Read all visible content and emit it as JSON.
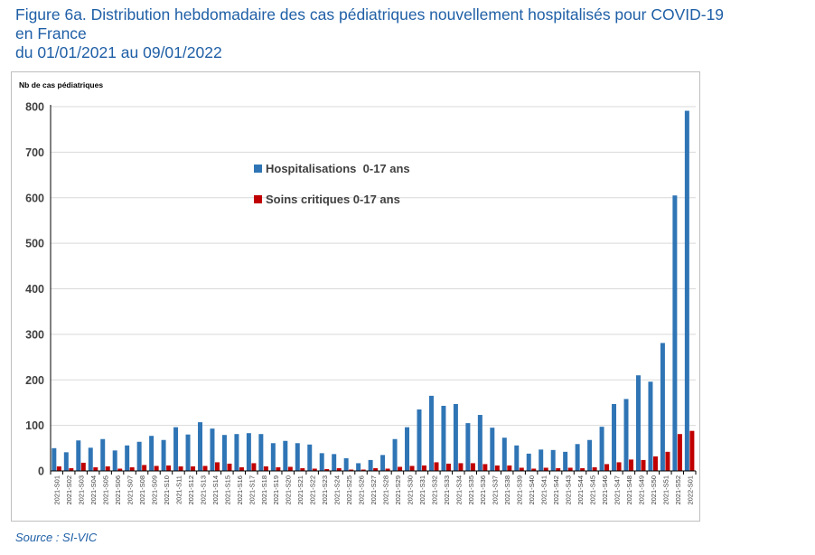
{
  "title": {
    "line1": "Figure 6a. Distribution hebdomadaire des cas pédiatriques nouvellement hospitalisés pour COVID-19",
    "line2": "en France",
    "line3": "du 01/01/2021 au 09/01/2022"
  },
  "source": "Source : SI-VIC",
  "colors": {
    "hosp": "#2f75b5",
    "crit": "#c00000",
    "grid": "#d9d9d9",
    "axis": "#000000"
  },
  "chart_data": {
    "type": "bar",
    "title": "",
    "xlabel": "",
    "ylabel": "Nb de cas pédiatriques",
    "ylim": [
      0,
      800
    ],
    "yticks": [
      0,
      100,
      200,
      300,
      400,
      500,
      600,
      700,
      800
    ],
    "grid": true,
    "legend": "top-center",
    "categories": [
      "2021-S01",
      "2021-S02",
      "2021-S03",
      "2021-S04",
      "2021-S05",
      "2021-S06",
      "2021-S07",
      "2021-S08",
      "2021-S09",
      "2021-S10",
      "2021-S11",
      "2021-S12",
      "2021-S13",
      "2021-S14",
      "2021-S15",
      "2021-S16",
      "2021-S17",
      "2021-S18",
      "2021-S19",
      "2021-S20",
      "2021-S21",
      "2021-S22",
      "2021-S23",
      "2021-S24",
      "2021-S25",
      "2021-S26",
      "2021-S27",
      "2021-S28",
      "2021-S29",
      "2021-S30",
      "2021-S31",
      "2021-S32",
      "2021-S33",
      "2021-S34",
      "2021-S35",
      "2021-S36",
      "2021-S37",
      "2021-S38",
      "2021-S39",
      "2021-S40",
      "2021-S41",
      "2021-S42",
      "2021-S43",
      "2021-S44",
      "2021-S45",
      "2021-S46",
      "2021-S47",
      "2021-S48",
      "2021-S49",
      "2021-S50",
      "2021-S51",
      "2021-S52",
      "2022-S01"
    ],
    "series": [
      {
        "name": "Hospitalisations  0-17 ans",
        "values": [
          50,
          41,
          67,
          51,
          70,
          45,
          56,
          64,
          77,
          68,
          96,
          80,
          107,
          93,
          79,
          81,
          83,
          81,
          61,
          66,
          61,
          58,
          39,
          37,
          28,
          17,
          24,
          35,
          70,
          96,
          135,
          165,
          143,
          147,
          105,
          123,
          95,
          73,
          56,
          38,
          47,
          46,
          42,
          59,
          68,
          97,
          147,
          158,
          210,
          196,
          281,
          605,
          791
        ]
      },
      {
        "name": "Soins critiques 0-17 ans",
        "values": [
          10,
          6,
          18,
          8,
          10,
          5,
          8,
          13,
          11,
          12,
          10,
          10,
          11,
          19,
          16,
          8,
          17,
          10,
          8,
          9,
          6,
          5,
          4,
          6,
          3,
          3,
          6,
          5,
          9,
          11,
          12,
          19,
          16,
          17,
          17,
          15,
          12,
          12,
          7,
          5,
          7,
          6,
          7,
          6,
          8,
          15,
          19,
          25,
          24,
          32,
          42,
          81,
          88
        ]
      }
    ]
  }
}
